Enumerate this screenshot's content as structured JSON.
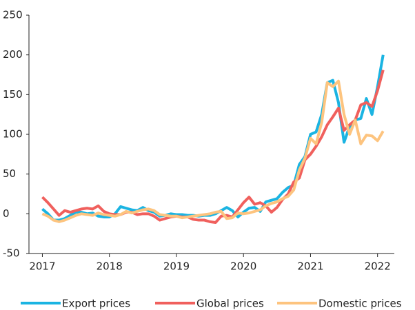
{
  "chart_data": {
    "type": "line",
    "x": [
      2017,
      2017.083,
      2017.167,
      2017.25,
      2017.333,
      2017.417,
      2017.5,
      2017.583,
      2017.667,
      2017.75,
      2017.833,
      2017.917,
      2018,
      2018.083,
      2018.167,
      2018.25,
      2018.333,
      2018.417,
      2018.5,
      2018.583,
      2018.667,
      2018.75,
      2018.833,
      2018.917,
      2019,
      2019.083,
      2019.167,
      2019.25,
      2019.333,
      2019.417,
      2019.5,
      2019.583,
      2019.667,
      2019.75,
      2019.833,
      2019.917,
      2020,
      2020.083,
      2020.167,
      2020.25,
      2020.333,
      2020.417,
      2020.5,
      2020.583,
      2020.667,
      2020.75,
      2020.833,
      2020.917,
      2021,
      2021.083,
      2021.167,
      2021.25,
      2021.333,
      2021.417,
      2021.5,
      2021.583,
      2021.667,
      2021.75,
      2021.833,
      2021.917,
      2022,
      2022.083
    ],
    "series": [
      {
        "name": "Export prices",
        "color": "#1bb4e2",
        "values": [
          6,
          0,
          -8,
          -8,
          -6,
          -2,
          2,
          2,
          0,
          1,
          -3,
          -4,
          -4,
          0,
          9,
          7,
          5,
          4,
          8,
          4,
          2,
          -3,
          -2,
          0,
          -1,
          -1,
          -2,
          -2,
          -3,
          -2,
          -2,
          0,
          4,
          8,
          4,
          -4,
          2,
          7,
          8,
          3,
          15,
          17,
          19,
          27,
          33,
          36,
          62,
          72,
          100,
          103,
          125,
          165,
          168,
          140,
          90,
          110,
          118,
          120,
          145,
          125,
          160,
          200
        ]
      },
      {
        "name": "Global prices",
        "color": "#f0605d",
        "values": [
          21,
          14,
          6,
          -2,
          4,
          2,
          4,
          6,
          7,
          6,
          10,
          3,
          0,
          -1,
          -1,
          2,
          2,
          -1,
          0,
          0,
          -3,
          -8,
          -6,
          -4,
          -3,
          -4,
          -4,
          -7,
          -8,
          -8,
          -10,
          -11,
          -3,
          -2,
          -4,
          5,
          14,
          21,
          12,
          14,
          10,
          2,
          8,
          18,
          25,
          40,
          45,
          68,
          75,
          85,
          97,
          112,
          122,
          133,
          105,
          112,
          118,
          137,
          140,
          135,
          155,
          181
        ]
      },
      {
        "name": "Domestic prices",
        "color": "#fdc47f",
        "values": [
          0,
          -3,
          -8,
          -10,
          -8,
          -5,
          -2,
          0,
          -1,
          -2,
          1,
          -1,
          -2,
          -3,
          -1,
          3,
          1,
          3,
          5,
          6,
          4,
          -1,
          -2,
          -3,
          -3,
          -5,
          -4,
          -3,
          -2,
          -1,
          0,
          2,
          3,
          -6,
          -5,
          1,
          0,
          1,
          3,
          5,
          10,
          13,
          15,
          19,
          22,
          30,
          55,
          70,
          95,
          88,
          115,
          165,
          160,
          167,
          125,
          100,
          118,
          88,
          99,
          98,
          92,
          104
        ]
      }
    ],
    "xlim": [
      2016.8,
      2022.25
    ],
    "xticks": [
      2017,
      2018,
      2019,
      2020,
      2021,
      2022
    ],
    "ylim": [
      -50,
      250
    ],
    "yticks": [
      -50,
      0,
      50,
      100,
      150,
      200,
      250
    ],
    "grid": false,
    "legend": "bottom"
  }
}
